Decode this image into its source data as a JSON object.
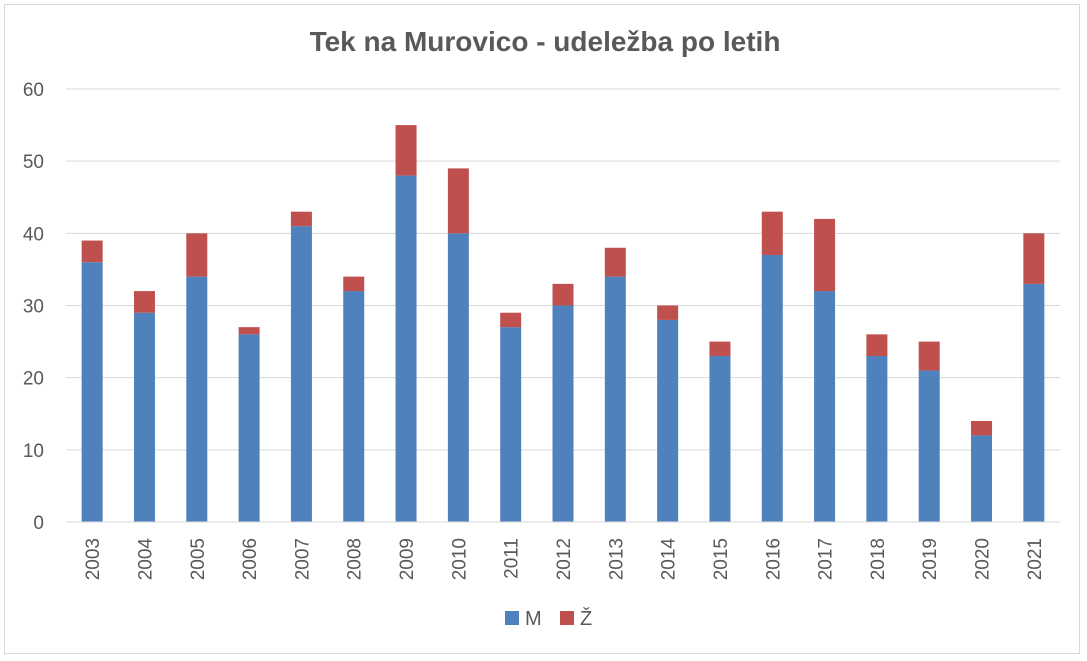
{
  "chart_data": {
    "type": "bar",
    "stacked": true,
    "title": "Tek na Murovico - udeležba po letih",
    "xlabel": "",
    "ylabel": "",
    "ylim": [
      0,
      60
    ],
    "yticks": [
      0,
      10,
      20,
      30,
      40,
      50,
      60
    ],
    "grid": true,
    "legend_position": "bottom",
    "categories": [
      "2003",
      "2004",
      "2005",
      "2006",
      "2007",
      "2008",
      "2009",
      "2010",
      "2011",
      "2012",
      "2013",
      "2014",
      "2015",
      "2016",
      "2017",
      "2018",
      "2019",
      "2020",
      "2021"
    ],
    "series": [
      {
        "name": "M",
        "color": "#4f81bd",
        "values": [
          36,
          29,
          34,
          26,
          41,
          32,
          48,
          40,
          27,
          30,
          34,
          28,
          23,
          37,
          32,
          23,
          21,
          12,
          33
        ]
      },
      {
        "name": "Ž",
        "color": "#c0504d",
        "values": [
          3,
          3,
          6,
          1,
          2,
          2,
          7,
          9,
          2,
          3,
          4,
          2,
          2,
          6,
          10,
          3,
          4,
          2,
          7
        ]
      }
    ]
  }
}
